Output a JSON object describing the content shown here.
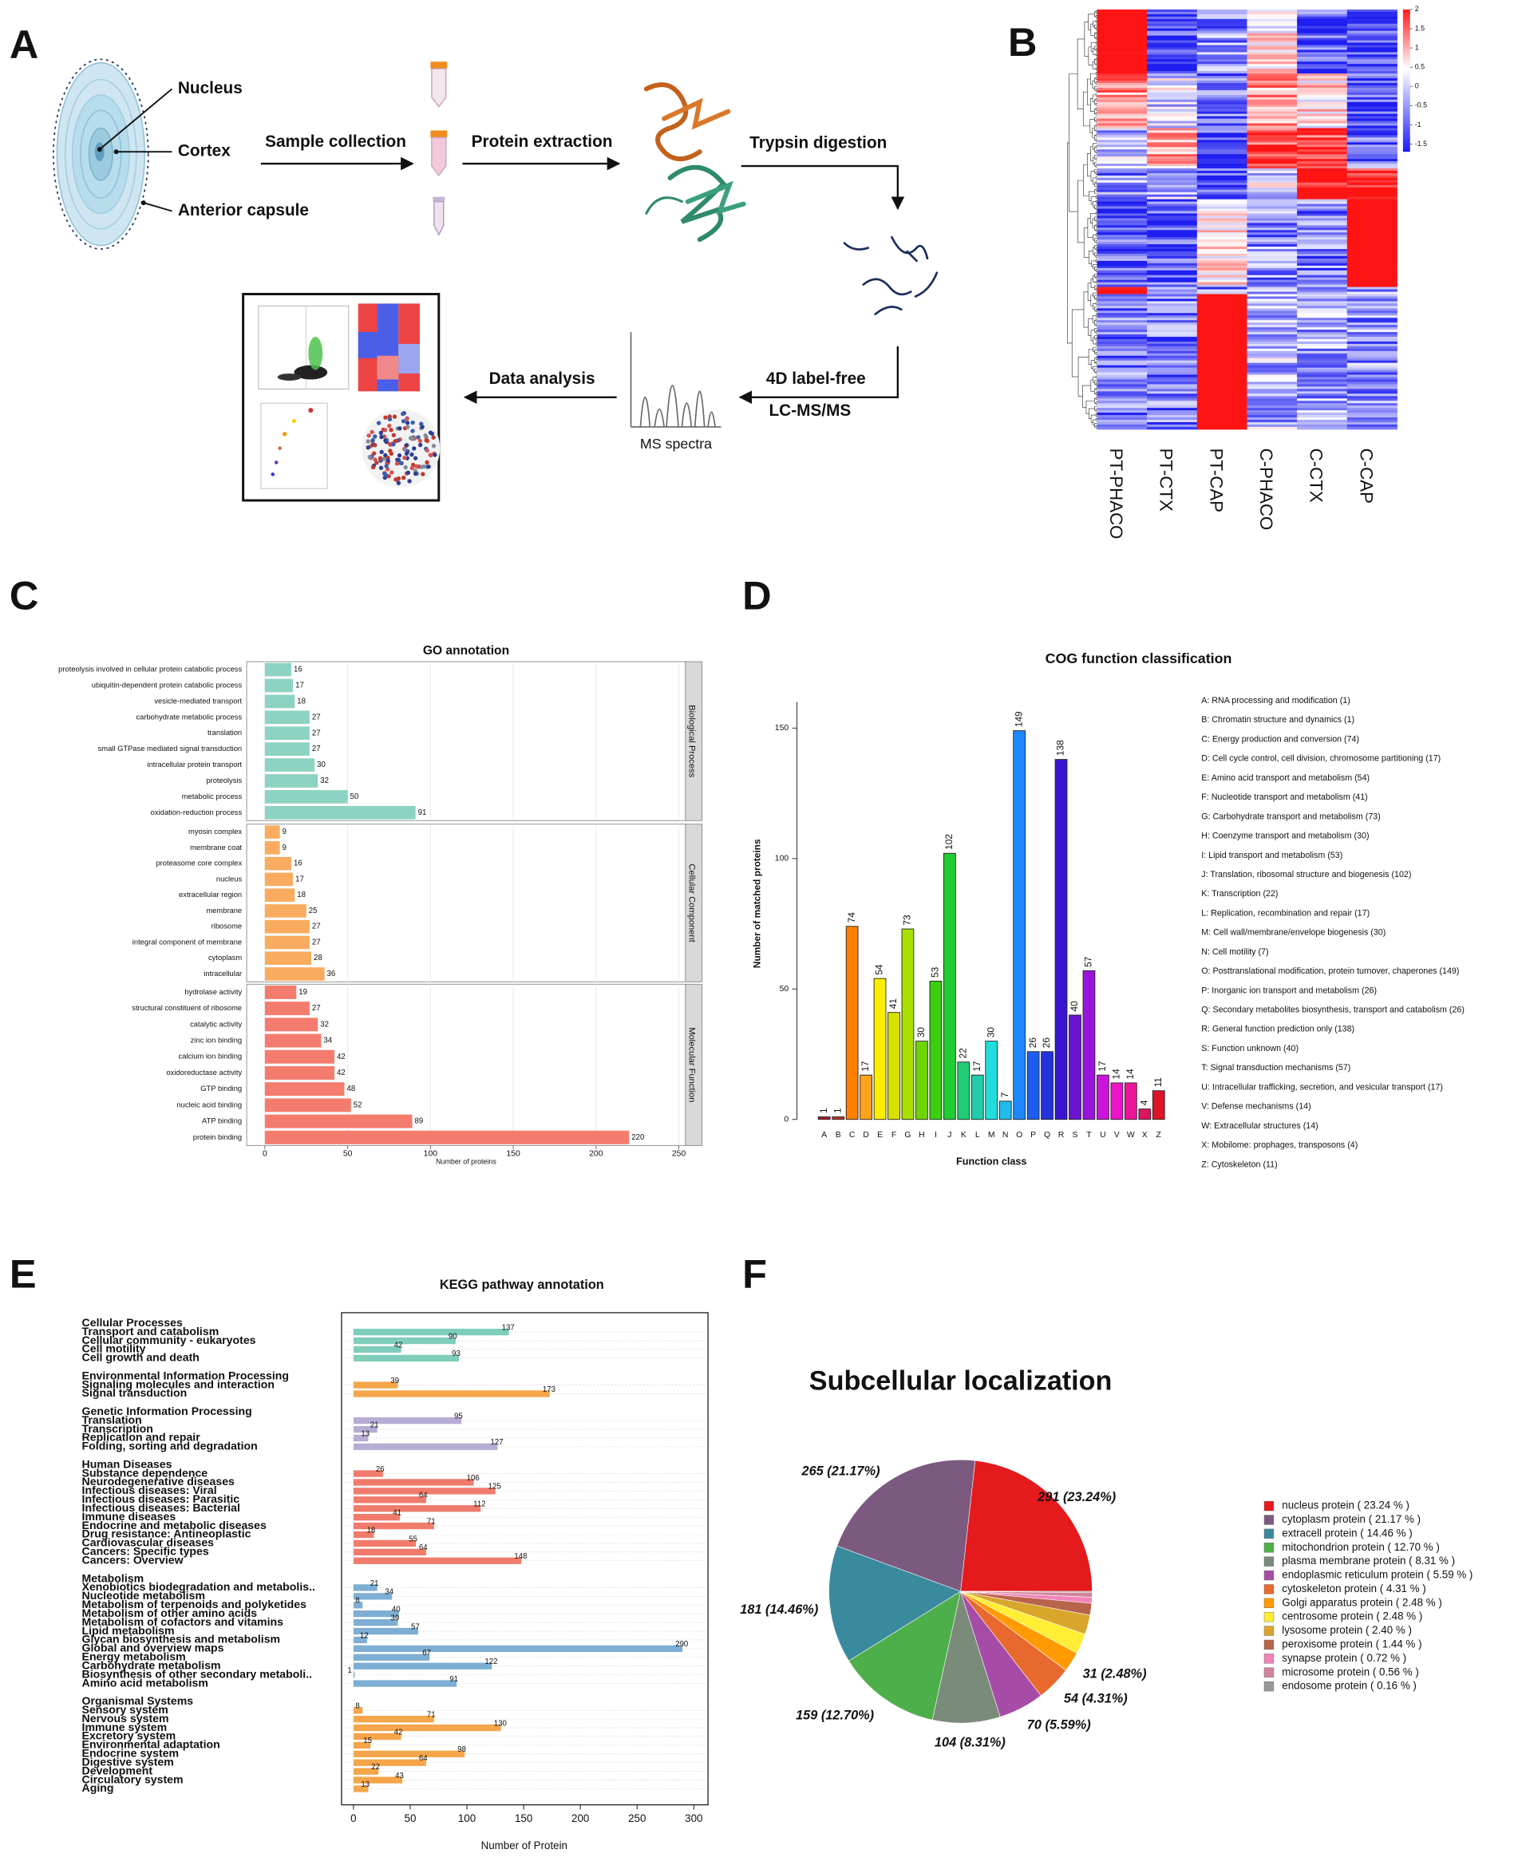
{
  "panel_labels": [
    "A",
    "B",
    "C",
    "D",
    "E",
    "F"
  ],
  "workflow": {
    "structures": [
      "Nucleus",
      "Cortex",
      "Anterior capsule"
    ],
    "steps": [
      "Sample collection",
      "Protein extraction",
      "Trypsin digestion",
      "4D label-free",
      "LC-MS/MS",
      "Data analysis"
    ],
    "spectra_label": "MS spectra"
  },
  "heatmap": {
    "columns": [
      "PT-PHACO",
      "PT-CTX",
      "PT-CAP",
      "C-PHACO",
      "C-CTX",
      "C-CAP"
    ],
    "colorbar_ticks": [
      2,
      1.5,
      1,
      0.5,
      0,
      -0.5,
      -1,
      -1.5
    ]
  },
  "chart_data": [
    {
      "type": "hbar_facets",
      "title": "GO annotation",
      "xlabel": "Number of proteins",
      "xlim": [
        -11,
        254
      ],
      "xticks": [
        0,
        50,
        100,
        150,
        200,
        250
      ],
      "facets": [
        {
          "name": "Biological Process",
          "color": "#8dd3c3",
          "categories": [
            "proteolysis involved in cellular protein catabolic process",
            "ubiquitin-dependent protein catabolic process",
            "vesicle-mediated transport",
            "carbohydrate metabolic process",
            "translation",
            "small GTPase mediated signal transduction",
            "intracellular protein transport",
            "proteolysis",
            "metabolic process",
            "oxidation-reduction process"
          ],
          "values": [
            16,
            17,
            18,
            27,
            27,
            27,
            30,
            32,
            50,
            91
          ]
        },
        {
          "name": "Cellular Component",
          "color": "#f9ab5f",
          "categories": [
            "myosin complex",
            "membrane coat",
            "proteasome core complex",
            "nucleus",
            "extracellular region",
            "membrane",
            "ribosome",
            "integral component of membrane",
            "cytoplasm",
            "intracellular"
          ],
          "values": [
            9,
            9,
            16,
            17,
            18,
            25,
            27,
            27,
            28,
            36
          ]
        },
        {
          "name": "Molecular Function",
          "color": "#f47c6e",
          "categories": [
            "hydrolase activity",
            "structural constituent of ribosome",
            "catalytic activity",
            "zinc ion binding",
            "calcium ion binding",
            "oxidoreductase activity",
            "GTP binding",
            "nucleic acid binding",
            "ATP binding",
            "protein binding"
          ],
          "values": [
            19,
            27,
            32,
            34,
            42,
            42,
            48,
            52,
            89,
            220
          ]
        }
      ]
    },
    {
      "type": "bar",
      "title": "COG function classification",
      "xlabel": "Function class",
      "ylabel": "Number of matched proteins",
      "ylim": [
        0,
        160
      ],
      "yticks": [
        0,
        50,
        100,
        150
      ],
      "categories": [
        "A",
        "B",
        "C",
        "D",
        "E",
        "F",
        "G",
        "H",
        "I",
        "J",
        "K",
        "L",
        "M",
        "N",
        "O",
        "P",
        "Q",
        "R",
        "S",
        "T",
        "U",
        "V",
        "W",
        "X",
        "Z"
      ],
      "values": [
        1,
        1,
        74,
        17,
        54,
        41,
        73,
        30,
        53,
        102,
        22,
        17,
        30,
        7,
        149,
        26,
        26,
        138,
        40,
        57,
        17,
        14,
        14,
        4,
        11
      ],
      "colors": [
        "#b2182b",
        "#c0392b",
        "#ff7f00",
        "#ffa31a",
        "#ffee00",
        "#d8e000",
        "#a8e000",
        "#6fd400",
        "#3ccf10",
        "#22cc33",
        "#22cc77",
        "#22ccaa",
        "#22dddd",
        "#22bbee",
        "#1e88ff",
        "#1e5cf0",
        "#2233dd",
        "#3a14d0",
        "#6a14cf",
        "#9a14dd",
        "#cc14dd",
        "#ee14cc",
        "#ee1499",
        "#dd1460",
        "#dd1428"
      ],
      "labels": [
        "A: RNA processing and modification  (1)",
        "B: Chromatin structure and dynamics  (1)",
        "C: Energy production and conversion  (74)",
        "D: Cell cycle control, cell division, chromosome partitioning  (17)",
        "E: Amino acid transport and metabolism  (54)",
        "F: Nucleotide transport and metabolism  (41)",
        "G: Carbohydrate transport and metabolism  (73)",
        "H: Coenzyme transport and metabolism  (30)",
        "I: Lipid transport and metabolism  (53)",
        "J: Translation, ribosomal structure and biogenesis  (102)",
        "K: Transcription  (22)",
        "L: Replication, recombination and repair  (17)",
        "M: Cell wall/membrane/envelope biogenesis  (30)",
        "N: Cell motility  (7)",
        "O: Posttranslational modification, protein turnover, chaperones  (149)",
        "P: Inorganic ion transport and metabolism  (26)",
        "Q: Secondary metabolites biosynthesis, transport and catabolism  (26)",
        "R: General function prediction only  (138)",
        "S: Function unknown  (40)",
        "T: Signal transduction mechanisms  (57)",
        "U: Intracellular trafficking, secretion, and vesicular transport  (17)",
        "V: Defense mechanisms  (14)",
        "W: Extracellular structures  (14)",
        "X: Mobilome: prophages, transposons  (4)",
        "Z: Cytoskeleton  (11)"
      ]
    },
    {
      "type": "hbar_groups",
      "title": "KEGG pathway annotation",
      "xlabel": "Number of Protein",
      "xlim": [
        -10.5,
        312.5
      ],
      "xticks": [
        0,
        50,
        100,
        150,
        200,
        250,
        300
      ],
      "groups": [
        {
          "name": "Cellular Processes",
          "color": "#7fcdbb",
          "categories": [
            "Transport and catabolism",
            "Cellular community - eukaryotes",
            "Cell motility",
            "Cell growth and death"
          ],
          "values": [
            137,
            90,
            42,
            93
          ]
        },
        {
          "name": "Environmental Information Processing",
          "color": "#f5a54a",
          "categories": [
            "Signaling molecules and interaction",
            "Signal transduction"
          ],
          "values": [
            39,
            173
          ]
        },
        {
          "name": "Genetic Information Processing",
          "color": "#b7acd3",
          "categories": [
            "Translation",
            "Transcription",
            "Replication and repair",
            "Folding, sorting and degradation"
          ],
          "values": [
            95,
            21,
            13,
            127
          ]
        },
        {
          "name": "Human Diseases",
          "color": "#f07b6c",
          "categories": [
            "Substance dependence",
            "Neurodegenerative diseases",
            "Infectious diseases: Viral",
            "Infectious diseases: Parasitic",
            "Infectious diseases: Bacterial",
            "Immune diseases",
            "Endocrine and metabolic diseases",
            "Drug resistance: Antineoplastic",
            "Cardiovascular diseases",
            "Cancers: Specific types",
            "Cancers: Overview"
          ],
          "values": [
            26,
            106,
            125,
            64,
            112,
            41,
            71,
            18,
            55,
            64,
            148
          ]
        },
        {
          "name": "Metabolism",
          "color": "#7eaed3",
          "categories": [
            "Xenobiotics biodegradation and metabolis..",
            "Nucleotide metabolism",
            "Metabolism of terpenoids and polyketides",
            "Metabolism of other amino acids",
            "Metabolism of cofactors and vitamins",
            "Lipid metabolism",
            "Glycan biosynthesis and metabolism",
            "Global and overview maps",
            "Energy metabolism",
            "Carbohydrate metabolism",
            "Biosynthesis of other secondary metaboli..",
            "Amino acid metabolism"
          ],
          "values": [
            21,
            34,
            8,
            40,
            39,
            57,
            12,
            290,
            67,
            122,
            1,
            91
          ]
        },
        {
          "name": "Organismal Systems",
          "color": "#f5a54a",
          "categories": [
            "Sensory system",
            "Nervous system",
            "Immune system",
            "Excretory system",
            "Environmental adaptation",
            "Endocrine system",
            "Digestive system",
            "Development",
            "Circulatory system",
            "Aging"
          ],
          "values": [
            8,
            71,
            130,
            42,
            15,
            98,
            64,
            22,
            43,
            13
          ]
        }
      ]
    },
    {
      "type": "pie",
      "title": "Subcellular localization",
      "labels": [
        "nucleus protein  ( 23.24 % )",
        "cytoplasm protein  ( 21.17 % )",
        "extracell protein  ( 14.46 % )",
        "mitochondrion protein  ( 12.70 % )",
        "plasma membrane protein  ( 8.31 % )",
        "endoplasmic reticulum protein  ( 5.59 % )",
        "cytoskeleton protein  ( 4.31 % )",
        "Golgi apparatus protein  ( 2.48 % )",
        "centrosome protein  ( 2.48 % )",
        "lysosome protein  ( 2.40 % )",
        "peroxisome protein  ( 1.44 % )",
        "synapse protein  ( 0.72 % )",
        "microsome protein  ( 0.56 % )",
        "endosome protein  ( 0.16 % )"
      ],
      "values": [
        23.24,
        21.17,
        14.46,
        12.7,
        8.31,
        5.59,
        4.31,
        2.48,
        2.48,
        2.4,
        1.44,
        0.72,
        0.56,
        0.16
      ],
      "value_labels": [
        "291 (23.24%)",
        "265 (21.17%)",
        "181 (14.46%)",
        "159 (12.70%)",
        "104 (8.31%)",
        "70 (5.59%)",
        "54 (4.31%)",
        null,
        "31 (2.48%)",
        null,
        null,
        null,
        null,
        null
      ],
      "colors": [
        "#e41a1c",
        "#7c5a80",
        "#3a8a9e",
        "#4daf4a",
        "#7b8b7a",
        "#a64ca6",
        "#e8692e",
        "#ff9a00",
        "#ffee33",
        "#d9a62c",
        "#b8634c",
        "#f283b9",
        "#d4849a",
        "#999999"
      ]
    }
  ]
}
